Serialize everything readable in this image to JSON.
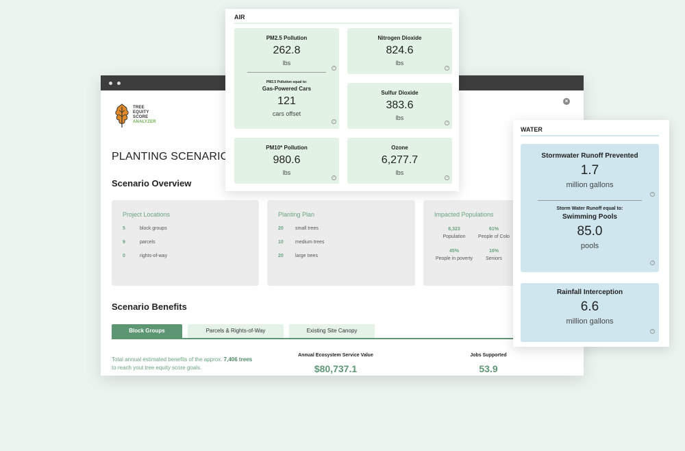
{
  "window": {
    "close_icon": "close-circle-icon",
    "logo": {
      "lines": [
        "TREE",
        "EQUITY",
        "SCORE",
        "ANALYZER"
      ],
      "leaf_icon": "oak-leaf-icon",
      "accent": "#6ab04c"
    },
    "page_title": "PLANTING SCENARIO",
    "overview_title": "Scenario Overview",
    "project_locations": {
      "title": "Project Locations",
      "rows": [
        {
          "num": "5",
          "label": "block groups"
        },
        {
          "num": "9",
          "label": "parcels"
        },
        {
          "num": "0",
          "label": "rights-of-way"
        }
      ]
    },
    "planting_plan": {
      "title": "Planting Plan",
      "rows": [
        {
          "num": "20",
          "label": "small trees"
        },
        {
          "num": "10",
          "label": "medium trees"
        },
        {
          "num": "20",
          "label": "large trees"
        }
      ]
    },
    "impacted": {
      "title": "Impacted Populations",
      "cells": [
        {
          "num": "8,323",
          "label": "Population"
        },
        {
          "num": "61%",
          "label": "People of Colo"
        },
        {
          "num": "45%",
          "label": "People in poverty"
        },
        {
          "num": "16%",
          "label": "Seniors"
        }
      ]
    },
    "benefits_title": "Scenario Benefits",
    "tabs": [
      "Block Groups",
      "Parcels & Rights-of-Way",
      "Existing Site Canopy"
    ],
    "benefit_text_pre": "Total annual estimated benefits of the approx.",
    "benefit_text_trees": "7,406 trees",
    "benefit_text_post": "to reach yout tree equity score goals.",
    "annual_value_label": "Annual Ecosystem Service Value",
    "annual_value": "$80,737.1",
    "jobs_label": "Jobs Supported",
    "jobs_value": "53.9"
  },
  "air": {
    "header": "AIR",
    "pm25": {
      "label": "PM2.5 Pollution",
      "value": "262.8",
      "unit": "lbs",
      "equal_small": "PM2.5 Pollution equal to:",
      "equal_label": "Gas-Powered Cars",
      "equal_value": "121",
      "equal_unit": "cars offset"
    },
    "no2": {
      "label": "Nitrogen Dioxide",
      "value": "824.6",
      "unit": "lbs"
    },
    "so2": {
      "label": "Sulfur Dioxide",
      "value": "383.6",
      "unit": "lbs"
    },
    "pm10": {
      "label": "PM10* Pollution",
      "value": "980.6",
      "unit": "lbs"
    },
    "ozone": {
      "label": "Ozone",
      "value": "6,277.7",
      "unit": "lbs"
    }
  },
  "water": {
    "header": "WATER",
    "runoff": {
      "label": "Stormwater Runoff Prevented",
      "value": "1.7",
      "unit": "million gallons",
      "equal_small": "Storm Water Runoff equal to:",
      "equal_label": "Swimming Pools",
      "equal_value": "85.0",
      "equal_unit": "pools"
    },
    "rainfall": {
      "label": "Rainfall Interception",
      "value": "6.6",
      "unit": "million gallons"
    }
  },
  "colors": {
    "green": "#5c9673",
    "air_tile": "#e2f2e4",
    "water_tile": "#cfe6ee",
    "water_rule": "#cfe6ee",
    "air_rule": "#e2f2e4"
  }
}
